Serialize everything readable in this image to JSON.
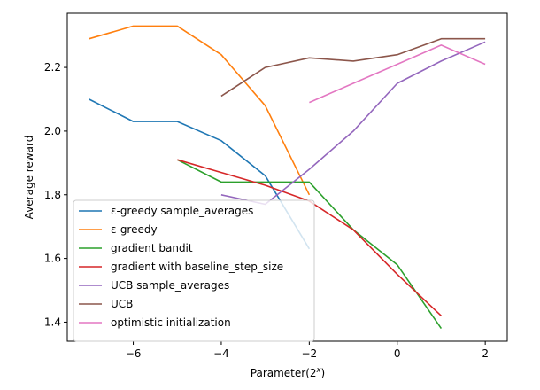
{
  "chart_data": {
    "type": "line",
    "title": "",
    "xlabel": "Parameter(2",
    "xlabel_sup": "x",
    "xlabel_close": ")",
    "ylabel": "Average reward",
    "xlim": [
      -7.5,
      2.5
    ],
    "ylim": [
      1.34,
      2.37
    ],
    "xticks": [
      -6,
      -4,
      -2,
      0,
      2
    ],
    "xtick_labels": [
      "−6",
      "−4",
      "−2",
      "0",
      "2"
    ],
    "yticks": [
      1.4,
      1.6,
      1.8,
      2.0,
      2.2
    ],
    "ytick_labels": [
      "1.4",
      "1.6",
      "1.8",
      "2.0",
      "2.2"
    ],
    "grid": false,
    "legend_position": "lower-left",
    "series": [
      {
        "name": "ε-greedy sample_averages",
        "color": "#1f77b4",
        "x": [
          -7,
          -6,
          -5,
          -4,
          -3,
          -2
        ],
        "y": [
          2.1,
          2.03,
          2.03,
          1.97,
          1.86,
          1.63
        ]
      },
      {
        "name": "ε-greedy",
        "color": "#ff7f0e",
        "x": [
          -7,
          -6,
          -5,
          -4,
          -3,
          -2
        ],
        "y": [
          2.29,
          2.33,
          2.33,
          2.24,
          2.08,
          1.8
        ]
      },
      {
        "name": "gradient bandit",
        "color": "#2ca02c",
        "x": [
          -5,
          -4,
          -3,
          -2,
          -1,
          0,
          1
        ],
        "y": [
          1.91,
          1.84,
          1.84,
          1.84,
          1.69,
          1.58,
          1.38
        ]
      },
      {
        "name": "gradient with baseline_step_size",
        "color": "#d62728",
        "x": [
          -5,
          -4,
          -3,
          -2,
          -1,
          0,
          1
        ],
        "y": [
          1.91,
          1.87,
          1.83,
          1.78,
          1.69,
          1.55,
          1.42
        ]
      },
      {
        "name": "UCB sample_averages",
        "color": "#9467bd",
        "x": [
          -4,
          -3,
          -2,
          -1,
          0,
          1,
          2
        ],
        "y": [
          1.8,
          1.77,
          1.88,
          2.0,
          2.15,
          2.22,
          2.28
        ]
      },
      {
        "name": "UCB",
        "color": "#8c564b",
        "x": [
          -4,
          -3,
          -2,
          -1,
          0,
          1,
          2
        ],
        "y": [
          2.11,
          2.2,
          2.23,
          2.22,
          2.24,
          2.29,
          2.29
        ]
      },
      {
        "name": "optimistic initialization",
        "color": "#e377c2",
        "x": [
          -2,
          -1,
          0,
          1,
          2
        ],
        "y": [
          2.09,
          2.15,
          2.21,
          2.27,
          2.21
        ]
      }
    ]
  }
}
